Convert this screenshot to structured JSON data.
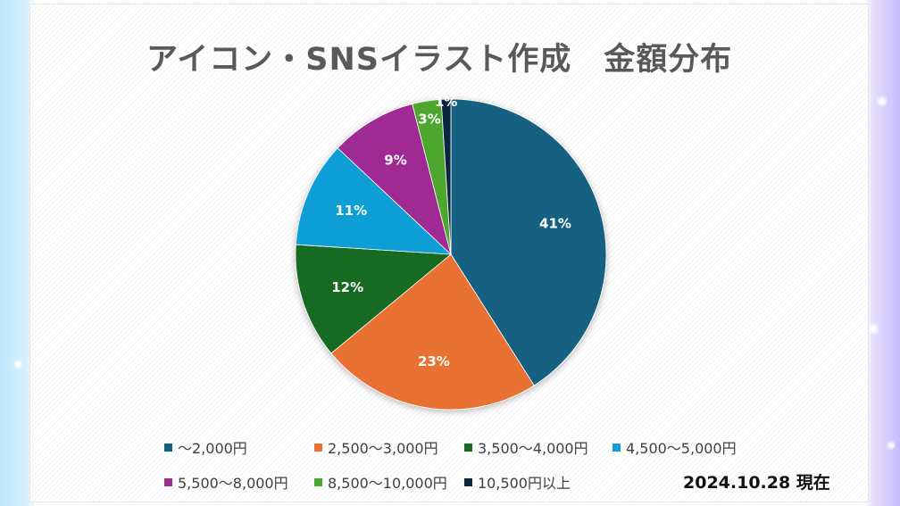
{
  "chart_data": {
    "type": "pie",
    "title": "アイコン・SNSイラスト作成　金額分布",
    "slices": [
      {
        "label": "～2,000円",
        "value": 41,
        "display": "41%",
        "color": "#156082"
      },
      {
        "label": "2,500～3,000円",
        "value": 23,
        "display": "23%",
        "color": "#E97132"
      },
      {
        "label": "3,500～4,000円",
        "value": 12,
        "display": "12%",
        "color": "#196B24"
      },
      {
        "label": "4,500～5,000円",
        "value": 11,
        "display": "11%",
        "color": "#0F9ED5"
      },
      {
        "label": "5,500～8,000円",
        "value": 9,
        "display": "9%",
        "color": "#A02B93"
      },
      {
        "label": "8,500～10,000円",
        "value": 3,
        "display": "3%",
        "color": "#4EA72E"
      },
      {
        "label": "10,500円以上",
        "value": 1,
        "display": "1%",
        "color": "#0E2841"
      }
    ],
    "legend_placement": "bottom",
    "start_angle": "12 o'clock",
    "direction": "clockwise"
  },
  "date_label": "2024.10.28 現在"
}
